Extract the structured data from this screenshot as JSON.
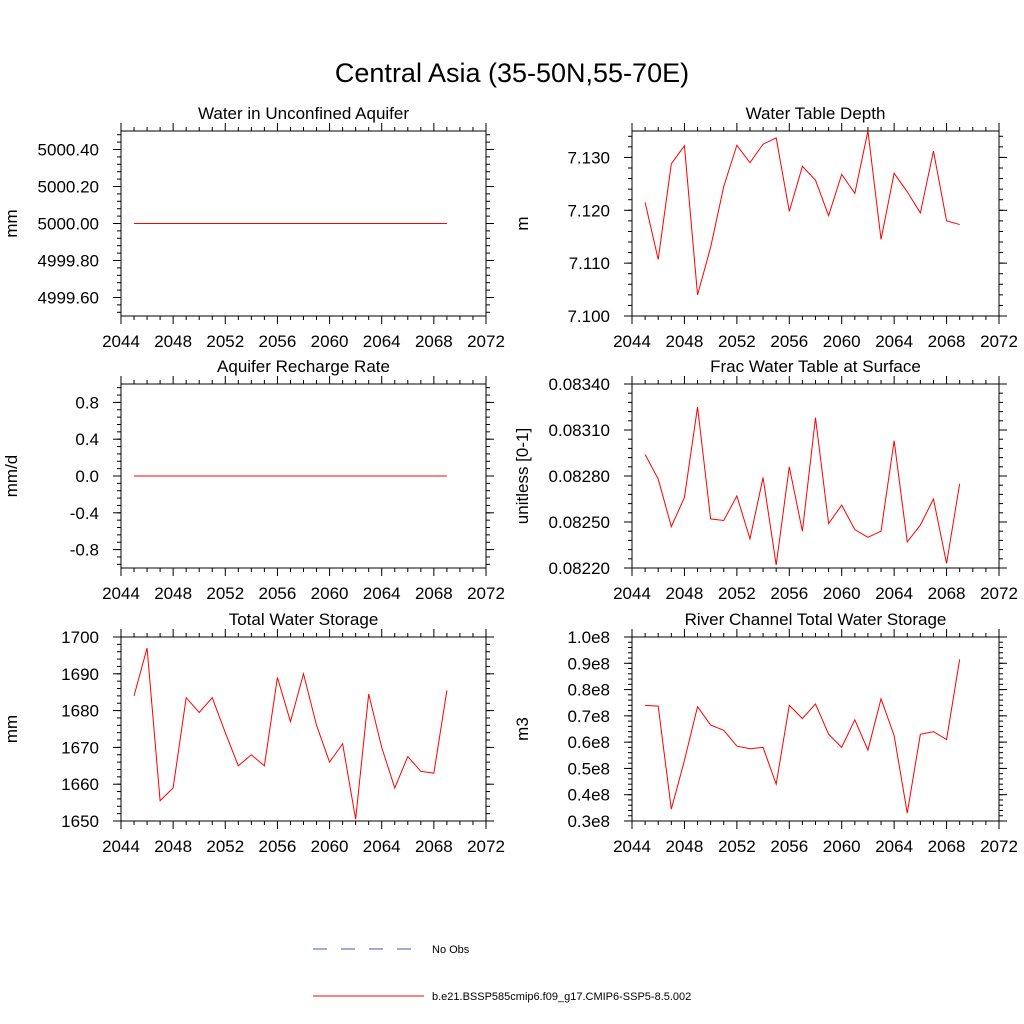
{
  "title": "Central Asia (35-50N,55-70E)",
  "colors": {
    "model": "#ff0000",
    "obs": "#4b5ba8",
    "axis": "#000000"
  },
  "legend": {
    "obs_label": "No Obs",
    "model_label": "b.e21.BSSP585cmip6.f09_g17.CMIP6-SSP5-8.5.002"
  },
  "chart_data": [
    {
      "type": "line",
      "title": "Water in Unconfined Aquifer",
      "xlabel": "",
      "ylabel": "mm",
      "xlim": [
        2044,
        2072
      ],
      "ylim": [
        4999.5,
        5000.5
      ],
      "xticks": [
        2044,
        2048,
        2052,
        2056,
        2060,
        2064,
        2068,
        2072
      ],
      "yticks": [
        4999.6,
        4999.8,
        5000.0,
        5000.2,
        5000.4
      ],
      "ytick_labels": [
        "4999.60",
        "4999.80",
        "5000.00",
        "5000.20",
        "5000.40"
      ],
      "x": [
        2045,
        2046,
        2047,
        2048,
        2049,
        2050,
        2051,
        2052,
        2053,
        2054,
        2055,
        2056,
        2057,
        2058,
        2059,
        2060,
        2061,
        2062,
        2063,
        2064,
        2065,
        2066,
        2067,
        2068,
        2069
      ],
      "series": [
        {
          "values": [
            5000,
            5000,
            5000,
            5000,
            5000,
            5000,
            5000,
            5000,
            5000,
            5000,
            5000,
            5000,
            5000,
            5000,
            5000,
            5000,
            5000,
            5000,
            5000,
            5000,
            5000,
            5000,
            5000,
            5000,
            5000
          ]
        }
      ]
    },
    {
      "type": "line",
      "title": "Water Table Depth",
      "xlabel": "",
      "ylabel": "m",
      "xlim": [
        2044,
        2072
      ],
      "ylim": [
        7.1,
        7.135
      ],
      "xticks": [
        2044,
        2048,
        2052,
        2056,
        2060,
        2064,
        2068,
        2072
      ],
      "yticks": [
        7.1,
        7.11,
        7.12,
        7.13
      ],
      "ytick_labels": [
        "7.100",
        "7.110",
        "7.120",
        "7.130"
      ],
      "x": [
        2045,
        2046,
        2047,
        2048,
        2049,
        2050,
        2051,
        2052,
        2053,
        2054,
        2055,
        2056,
        2057,
        2058,
        2059,
        2060,
        2061,
        2062,
        2063,
        2064,
        2065,
        2066,
        2067,
        2068,
        2069
      ],
      "series": [
        {
          "values": [
            7.1215,
            7.1107,
            7.1288,
            7.1322,
            7.104,
            7.113,
            7.1245,
            7.1323,
            7.129,
            7.1325,
            7.1337,
            7.1198,
            7.1283,
            7.1257,
            7.119,
            7.1268,
            7.1232,
            7.135,
            7.1145,
            7.127,
            7.1235,
            7.1195,
            7.1312,
            7.118,
            7.1173
          ]
        }
      ]
    },
    {
      "type": "line",
      "title": "Aquifer Recharge Rate",
      "xlabel": "",
      "ylabel": "mm/d",
      "xlim": [
        2044,
        2072
      ],
      "ylim": [
        -1.0,
        1.0
      ],
      "xticks": [
        2044,
        2048,
        2052,
        2056,
        2060,
        2064,
        2068,
        2072
      ],
      "yticks": [
        -0.8,
        -0.4,
        0.0,
        0.4,
        0.8
      ],
      "ytick_labels": [
        "-0.8",
        "-0.4",
        "0.0",
        "0.4",
        "0.8"
      ],
      "x": [
        2045,
        2046,
        2047,
        2048,
        2049,
        2050,
        2051,
        2052,
        2053,
        2054,
        2055,
        2056,
        2057,
        2058,
        2059,
        2060,
        2061,
        2062,
        2063,
        2064,
        2065,
        2066,
        2067,
        2068,
        2069
      ],
      "series": [
        {
          "values": [
            0,
            0,
            0,
            0,
            0,
            0,
            0,
            0,
            0,
            0,
            0,
            0,
            0,
            0,
            0,
            0,
            0,
            0,
            0,
            0,
            0,
            0,
            0,
            0,
            0
          ]
        }
      ]
    },
    {
      "type": "line",
      "title": "Frac Water Table at Surface",
      "xlabel": "",
      "ylabel": "unitless [0-1]",
      "xlim": [
        2044,
        2072
      ],
      "ylim": [
        0.0822,
        0.0834
      ],
      "xticks": [
        2044,
        2048,
        2052,
        2056,
        2060,
        2064,
        2068,
        2072
      ],
      "yticks": [
        0.0822,
        0.0825,
        0.0828,
        0.0831,
        0.0834
      ],
      "ytick_labels": [
        "0.08220",
        "0.08250",
        "0.08280",
        "0.08310",
        "0.08340"
      ],
      "x": [
        2045,
        2046,
        2047,
        2048,
        2049,
        2050,
        2051,
        2052,
        2053,
        2054,
        2055,
        2056,
        2057,
        2058,
        2059,
        2060,
        2061,
        2062,
        2063,
        2064,
        2065,
        2066,
        2067,
        2068,
        2069
      ],
      "series": [
        {
          "values": [
            0.08294,
            0.08278,
            0.08247,
            0.08266,
            0.08325,
            0.08252,
            0.08251,
            0.08267,
            0.08239,
            0.08279,
            0.08222,
            0.08286,
            0.08244,
            0.08318,
            0.08249,
            0.08261,
            0.08245,
            0.0824,
            0.08244,
            0.08303,
            0.08237,
            0.08248,
            0.08265,
            0.08223,
            0.08275
          ]
        }
      ]
    },
    {
      "type": "line",
      "title": "Total Water Storage",
      "xlabel": "",
      "ylabel": "mm",
      "xlim": [
        2044,
        2072
      ],
      "ylim": [
        1650,
        1700
      ],
      "xticks": [
        2044,
        2048,
        2052,
        2056,
        2060,
        2064,
        2068,
        2072
      ],
      "yticks": [
        1650,
        1660,
        1670,
        1680,
        1690,
        1700
      ],
      "ytick_labels": [
        "1650",
        "1660",
        "1670",
        "1680",
        "1690",
        "1700"
      ],
      "x": [
        2045,
        2046,
        2047,
        2048,
        2049,
        2050,
        2051,
        2052,
        2053,
        2054,
        2055,
        2056,
        2057,
        2058,
        2059,
        2060,
        2061,
        2062,
        2063,
        2064,
        2065,
        2066,
        2067,
        2068,
        2069
      ],
      "series": [
        {
          "values": [
            1684,
            1697,
            1655.5,
            1659,
            1683.5,
            1679.5,
            1683.5,
            1674,
            1665,
            1668,
            1665,
            1689,
            1677,
            1690,
            1676,
            1666,
            1671,
            1650.5,
            1684.5,
            1670,
            1659,
            1667.5,
            1663.5,
            1663,
            1685.5
          ]
        }
      ]
    },
    {
      "type": "line",
      "title": "River Channel Total Water Storage",
      "xlabel": "",
      "ylabel": "m3",
      "xlim": [
        2044,
        2072
      ],
      "ylim": [
        0.3,
        1.0
      ],
      "xticks": [
        2044,
        2048,
        2052,
        2056,
        2060,
        2064,
        2068,
        2072
      ],
      "yticks": [
        0.3,
        0.4,
        0.5,
        0.6,
        0.7,
        0.8,
        0.9,
        1.0
      ],
      "ytick_labels": [
        "0.3e8",
        "0.4e8",
        "0.5e8",
        "0.6e8",
        "0.7e8",
        "0.8e8",
        "0.9e8",
        "1.0e8"
      ],
      "x": [
        2045,
        2046,
        2047,
        2048,
        2049,
        2050,
        2051,
        2052,
        2053,
        2054,
        2055,
        2056,
        2057,
        2058,
        2059,
        2060,
        2061,
        2062,
        2063,
        2064,
        2065,
        2066,
        2067,
        2068,
        2069
      ],
      "series": [
        {
          "values": [
            0.74,
            0.737,
            0.345,
            0.53,
            0.735,
            0.665,
            0.645,
            0.585,
            0.575,
            0.58,
            0.44,
            0.74,
            0.69,
            0.745,
            0.63,
            0.58,
            0.685,
            0.57,
            0.765,
            0.625,
            0.33,
            0.63,
            0.64,
            0.61,
            0.915
          ]
        }
      ]
    }
  ]
}
